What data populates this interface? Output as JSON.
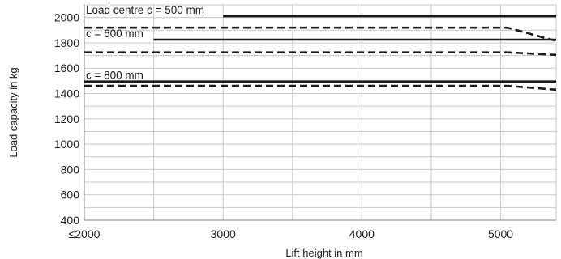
{
  "chart_data": {
    "type": "line",
    "xlabel": "Lift height in mm",
    "ylabel": "Load capacity in kg",
    "xlim": [
      2000,
      5400
    ],
    "ylim": [
      400,
      2100
    ],
    "x_ticks": [
      {
        "value": 2000,
        "label": "≤2000"
      },
      {
        "value": 3000,
        "label": "3000"
      },
      {
        "value": 4000,
        "label": "4000"
      },
      {
        "value": 5000,
        "label": "5000"
      }
    ],
    "x_gridlines": [
      2500,
      3000,
      3500,
      4000,
      4500,
      5000
    ],
    "y_ticks": [
      400,
      600,
      800,
      1000,
      1200,
      1400,
      1600,
      1800,
      2000
    ],
    "y_minor_gridlines": [
      500,
      700,
      900,
      1100,
      1300,
      1500,
      1700,
      1900
    ],
    "grid": true,
    "series": [
      {
        "name": "c = 500 mm",
        "label": "Load centre c = 500 mm",
        "style": "solid",
        "label_x": 2000,
        "x": [
          3000,
          5400
        ],
        "y": [
          2010,
          2010
        ]
      },
      {
        "style": "dashed",
        "x": [
          2000,
          5050,
          5400
        ],
        "y": [
          1920,
          1920,
          1815
        ]
      },
      {
        "name": "c = 600 mm",
        "label": "c = 600 mm",
        "style": "solid",
        "label_x": 2000,
        "x": [
          2500,
          5400
        ],
        "y": [
          1825,
          1825
        ]
      },
      {
        "style": "dashed",
        "x": [
          2000,
          5050,
          5400
        ],
        "y": [
          1725,
          1725,
          1705
        ]
      },
      {
        "name": "c = 800 mm",
        "label": "c = 800 mm",
        "style": "solid",
        "label_x": 2000,
        "x": [
          2000,
          5400
        ],
        "y": [
          1495,
          1495
        ]
      },
      {
        "style": "dashed",
        "x": [
          2000,
          5050,
          5400
        ],
        "y": [
          1460,
          1460,
          1430
        ]
      }
    ],
    "line_color": "#1a1a1a",
    "grid_color": "#c8c8c8"
  }
}
